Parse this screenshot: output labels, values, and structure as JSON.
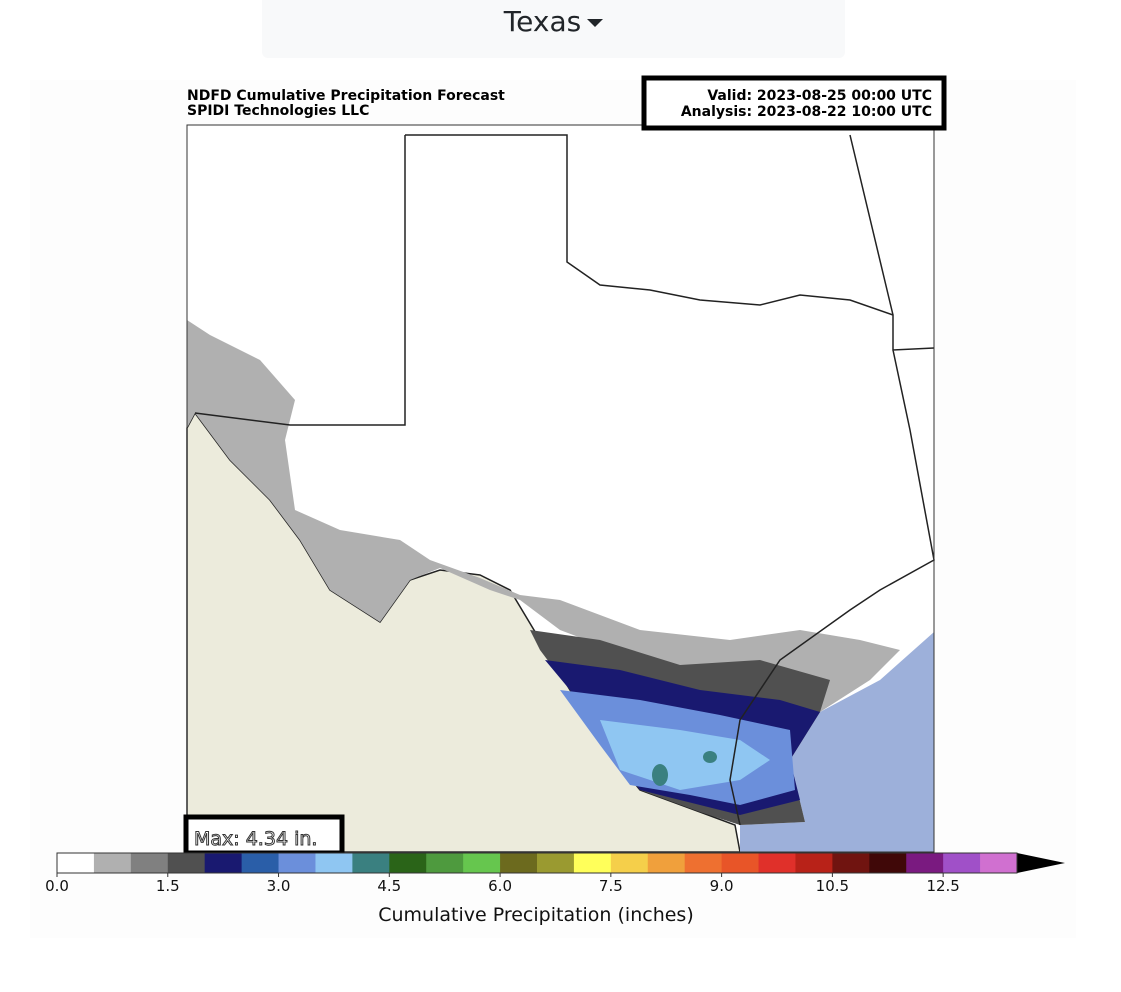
{
  "dropdown": {
    "label": "Texas"
  },
  "map": {
    "title": "NDFD Cumulative Precipitation Forecast",
    "subtitle": "SPIDI Technologies LLC",
    "valid": "Valid: 2023-08-25 00:00 UTC",
    "analysis": "Analysis: 2023-08-22 10:00 UTC",
    "max_label": "Max: 4.34 in.",
    "colorbar": {
      "label": "Cumulative Precipitation (inches)",
      "levels": [
        0,
        0.5,
        1,
        1.5,
        2,
        2.5,
        3,
        3.5,
        4,
        4.5,
        5,
        5.5,
        6,
        6.5,
        7,
        7.5,
        8,
        8.5,
        9,
        9.5,
        10,
        10.5,
        11,
        12,
        12.5,
        13,
        14
      ],
      "colors": [
        "#ffffff",
        "#b0b0b0",
        "#808080",
        "#505050",
        "#191970",
        "#2a5ea8",
        "#6b8fdb",
        "#8fc6f2",
        "#3a8080",
        "#2a6418",
        "#4e9a3e",
        "#66c64e",
        "#6c6a1e",
        "#9a9a30",
        "#ffff5a",
        "#f5cf4a",
        "#f0a03c",
        "#ee7030",
        "#e85528",
        "#e0302a",
        "#b82218",
        "#701410",
        "#400808",
        "#7a1a80",
        "#a050c8",
        "#d070d0"
      ],
      "ticks": [
        {
          "value": 0,
          "label": "0.0"
        },
        {
          "value": 1.5,
          "label": "1.5"
        },
        {
          "value": 3,
          "label": "3.0"
        },
        {
          "value": 4.5,
          "label": "4.5"
        },
        {
          "value": 6,
          "label": "6.0"
        },
        {
          "value": 7.5,
          "label": "7.5"
        },
        {
          "value": 9,
          "label": "9.0"
        },
        {
          "value": 10.5,
          "label": "10.5"
        },
        {
          "value": 12.5,
          "label": "12.5"
        }
      ]
    }
  }
}
